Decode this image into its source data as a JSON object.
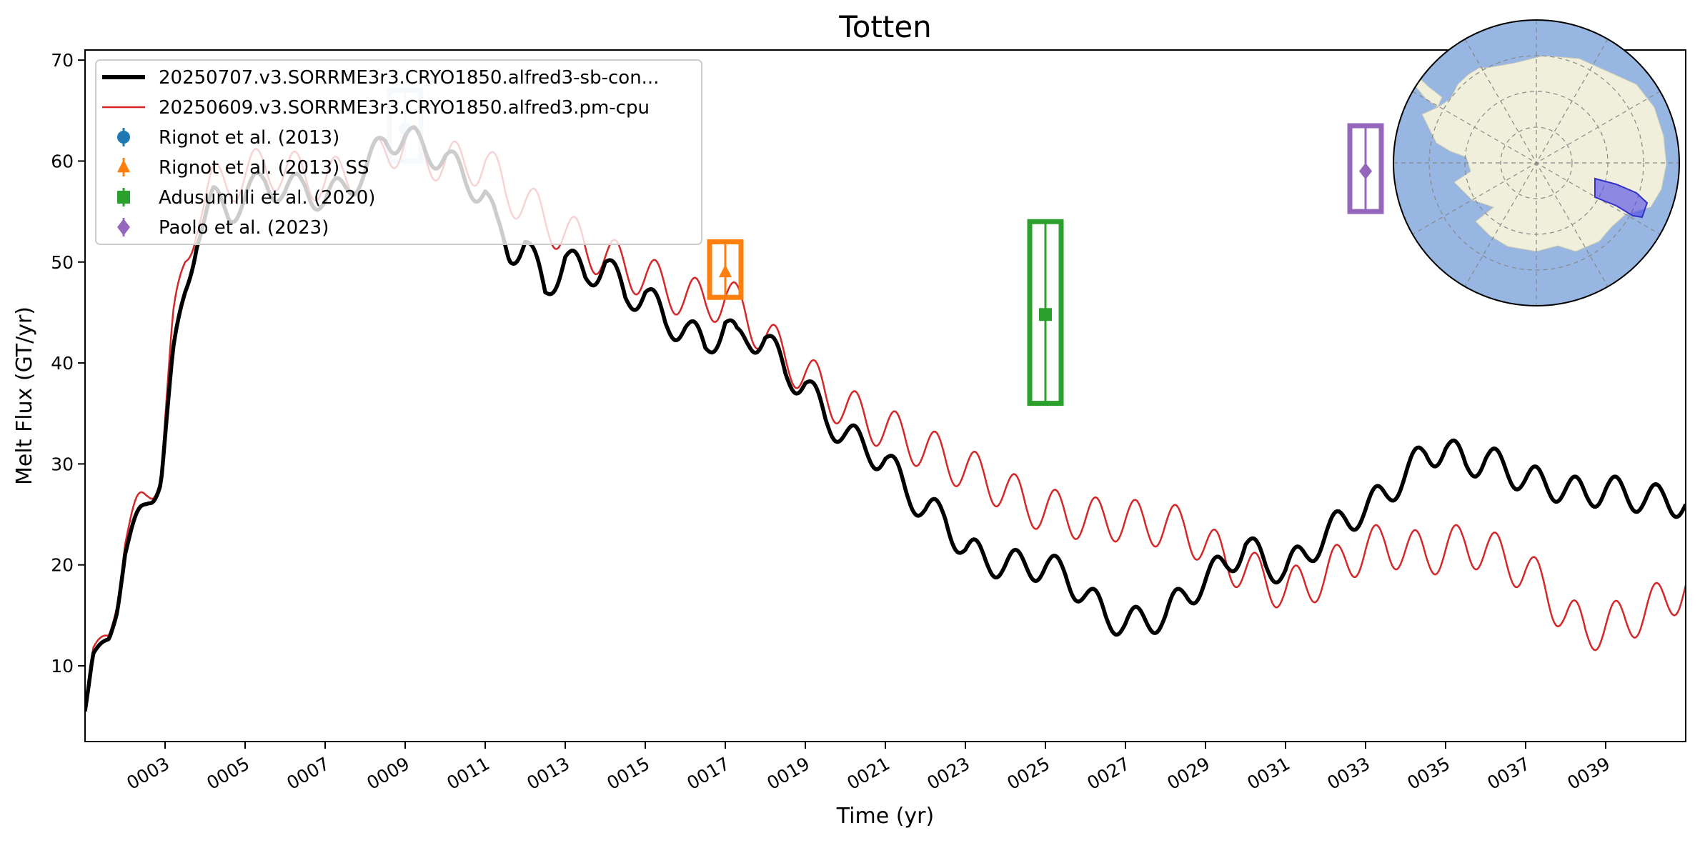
{
  "chart_data": {
    "type": "line",
    "title": "Totten",
    "xlabel": "Time (yr)",
    "ylabel": "Melt Flux (GT/yr)",
    "xlim": [
      1.0,
      41.0
    ],
    "ylim": [
      2.5,
      71.0
    ],
    "x_ticks": [
      3,
      5,
      7,
      9,
      11,
      13,
      15,
      17,
      19,
      21,
      23,
      25,
      27,
      29,
      31,
      33,
      35,
      37,
      39
    ],
    "x_tick_labels": [
      "0003",
      "0005",
      "0007",
      "0009",
      "0011",
      "0013",
      "0015",
      "0017",
      "0019",
      "0021",
      "0023",
      "0025",
      "0027",
      "0029",
      "0031",
      "0033",
      "0035",
      "0037",
      "0039"
    ],
    "y_ticks": [
      10,
      20,
      30,
      40,
      50,
      60,
      70
    ],
    "y_tick_labels": [
      "10",
      "20",
      "30",
      "40",
      "50",
      "60",
      "70"
    ],
    "grid": false,
    "legend_position": "upper-left",
    "series": [
      {
        "name": "20250707.v3.SORRME3r3.CRYO1850.alfred3-sb-con...",
        "color": "#000000",
        "style": "thick-line",
        "seasonal_amplitude": 1.5,
        "x": [
          1.0,
          1.2,
          1.4,
          1.6,
          1.8,
          2.0,
          2.3,
          2.6,
          2.9,
          3.2,
          3.5,
          3.8,
          4.2,
          4.6,
          5.0,
          5.5,
          6.0,
          6.5,
          7.0,
          7.5,
          8.0,
          8.5,
          9.0,
          9.5,
          10.0,
          10.5,
          11.0,
          11.3,
          11.6,
          12.0,
          12.5,
          13.0,
          13.5,
          14.0,
          14.5,
          15.0,
          15.5,
          16.0,
          16.5,
          17.0,
          17.3,
          17.6,
          18.0,
          18.5,
          19.0,
          19.5,
          20.0,
          20.5,
          21.0,
          21.5,
          22.0,
          22.5,
          23.0,
          23.5,
          24.0,
          24.5,
          25.0,
          25.5,
          26.0,
          26.5,
          27.0,
          27.5,
          28.0,
          28.5,
          29.0,
          29.5,
          30.0,
          30.5,
          31.0,
          31.5,
          32.0,
          32.5,
          33.0,
          33.5,
          34.0,
          34.5,
          35.0,
          35.5,
          36.0,
          36.5,
          37.0,
          37.5,
          38.0,
          38.5,
          39.0,
          39.5,
          40.0,
          40.5,
          41.0
        ],
        "values": [
          5.5,
          11.0,
          12.0,
          13.0,
          16.0,
          21.0,
          24.0,
          27.0,
          29.0,
          40.0,
          47.0,
          53.0,
          56.0,
          55.0,
          56.5,
          58.0,
          57.0,
          57.5,
          56.0,
          57.5,
          59.0,
          62.0,
          62.5,
          61.0,
          60.5,
          58.0,
          57.0,
          53.0,
          51.0,
          52.0,
          47.0,
          50.5,
          48.5,
          50.0,
          46.5,
          47.0,
          44.0,
          43.5,
          41.5,
          44.0,
          42.0,
          42.5,
          42.5,
          39.0,
          38.0,
          34.5,
          33.0,
          31.5,
          30.5,
          27.5,
          25.5,
          24.5,
          21.5,
          20.5,
          20.0,
          20.0,
          19.8,
          19.0,
          17.0,
          15.0,
          14.2,
          14.5,
          15.0,
          17.0,
          18.5,
          20.0,
          22.0,
          20.0,
          19.5,
          21.0,
          23.0,
          24.5,
          25.5,
          27.0,
          29.0,
          31.0,
          31.5,
          30.0,
          30.5,
          29.5,
          28.5,
          28.0,
          27.5,
          27.0,
          27.5,
          27.0,
          26.5,
          26.5,
          26.0
        ]
      },
      {
        "name": "20250609.v3.SORRME3r3.CRYO1850.alfred3.pm-cpu",
        "color": "#d62728",
        "style": "thin-line",
        "seasonal_amplitude": 2.2,
        "x": [
          1.0,
          1.2,
          1.4,
          1.6,
          1.8,
          2.0,
          2.3,
          2.6,
          2.9,
          3.2,
          3.5,
          3.8,
          4.2,
          4.6,
          5.0,
          5.5,
          6.0,
          6.5,
          7.0,
          7.5,
          8.0,
          8.5,
          9.0,
          9.5,
          10.0,
          10.5,
          11.0,
          11.5,
          12.0,
          12.5,
          13.0,
          13.5,
          14.0,
          14.5,
          15.0,
          15.5,
          16.0,
          16.5,
          17.0,
          17.5,
          18.0,
          18.5,
          19.0,
          19.5,
          20.0,
          20.5,
          21.0,
          21.5,
          22.0,
          22.5,
          23.0,
          23.5,
          24.0,
          24.5,
          25.0,
          25.5,
          26.0,
          26.5,
          27.0,
          27.5,
          28.0,
          28.5,
          29.0,
          29.5,
          30.0,
          30.5,
          31.0,
          31.5,
          32.0,
          32.5,
          33.0,
          33.5,
          34.0,
          34.5,
          35.0,
          35.5,
          36.0,
          36.5,
          37.0,
          37.5,
          38.0,
          38.5,
          39.0,
          39.5,
          40.0,
          40.5,
          41.0
        ],
        "values": [
          6.0,
          11.5,
          12.5,
          13.5,
          17.0,
          22.0,
          25.0,
          28.0,
          30.0,
          43.0,
          50.0,
          55.0,
          57.5,
          58.0,
          58.5,
          59.5,
          59.0,
          58.5,
          58.0,
          58.5,
          59.0,
          61.0,
          62.0,
          60.5,
          60.0,
          59.5,
          60.0,
          57.0,
          56.0,
          54.0,
          53.0,
          51.5,
          50.5,
          49.5,
          48.5,
          47.5,
          46.5,
          46.0,
          46.5,
          45.0,
          42.5,
          40.5,
          39.0,
          37.0,
          35.5,
          34.5,
          33.5,
          32.5,
          31.5,
          30.5,
          29.5,
          28.5,
          27.5,
          26.0,
          25.5,
          25.0,
          24.5,
          24.5,
          24.5,
          24.0,
          24.0,
          23.5,
          22.0,
          20.5,
          19.5,
          18.5,
          17.5,
          18.0,
          19.0,
          20.5,
          21.5,
          22.0,
          21.5,
          21.0,
          21.5,
          22.0,
          21.5,
          20.5,
          19.5,
          17.5,
          15.0,
          13.5,
          14.0,
          14.5,
          15.5,
          16.5,
          18.0
        ]
      }
    ],
    "observations": [
      {
        "name": "Rignot et al. (2013)",
        "color": "#1f77b4",
        "marker": "circle",
        "x": 9.0,
        "y": 63.2,
        "y_low": 60.0,
        "y_high": 67.0
      },
      {
        "name": "Rignot et al. (2013) SS",
        "color": "#ff7f0e",
        "marker": "triangle",
        "x": 17.0,
        "y": 49.0,
        "y_low": 46.5,
        "y_high": 52.0
      },
      {
        "name": "Adusumilli et al. (2020)",
        "color": "#2ca02c",
        "marker": "square",
        "x": 25.0,
        "y": 44.8,
        "y_low": 36.0,
        "y_high": 54.0
      },
      {
        "name": "Paolo et al. (2023)",
        "color": "#9467bd",
        "marker": "diamond",
        "x": 33.0,
        "y": 59.0,
        "y_low": 55.0,
        "y_high": 63.5
      }
    ],
    "legend": [
      {
        "label": "20250707.v3.SORRME3r3.CRYO1850.alfred3-sb-con...",
        "color": "#000000",
        "symbol": "thick-line"
      },
      {
        "label": "20250609.v3.SORRME3r3.CRYO1850.alfred3.pm-cpu",
        "color": "#d62728",
        "symbol": "thin-line"
      },
      {
        "label": "Rignot et al. (2013)",
        "color": "#1f77b4",
        "symbol": "circle-errorbar"
      },
      {
        "label": "Rignot et al. (2013) SS",
        "color": "#ff7f0e",
        "symbol": "triangle-errorbar"
      },
      {
        "label": "Adusumilli et al. (2020)",
        "color": "#2ca02c",
        "symbol": "square-errorbar"
      },
      {
        "label": "Paolo et al. (2023)",
        "color": "#9467bd",
        "symbol": "diamond-errorbar"
      }
    ],
    "inset_map": {
      "projection": "south-polar-stereographic",
      "ocean_color": "#97b6e1",
      "land_color": "#efefdb",
      "region_highlight_color": "#4b45e6",
      "region": "Totten"
    }
  }
}
